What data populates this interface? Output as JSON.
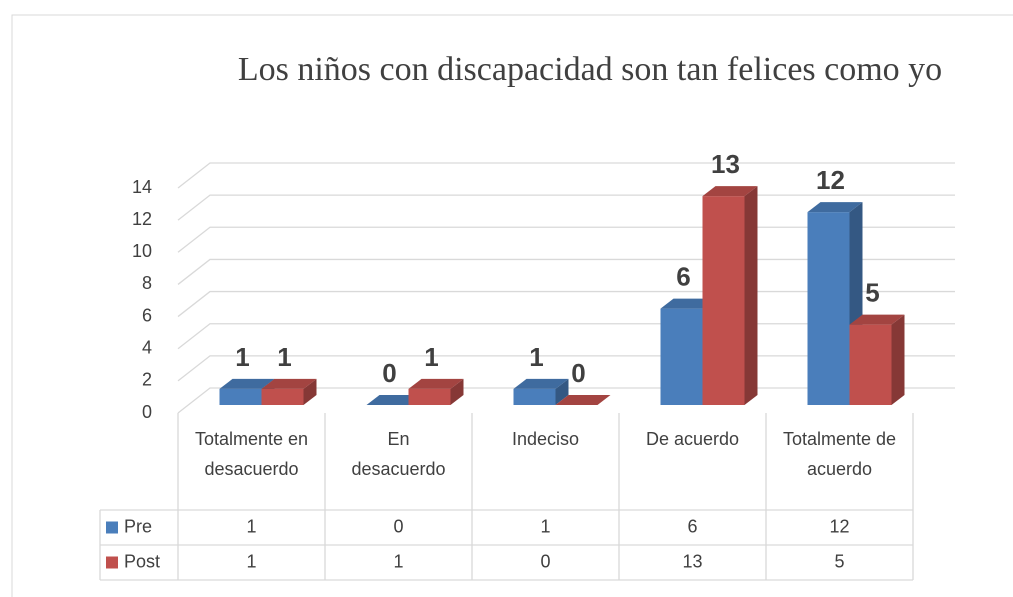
{
  "chart_data": {
    "type": "bar3d",
    "title": "Los niños con discapacidad son tan felices como yo",
    "categories": [
      "Totalmente en desacuerdo",
      "En desacuerdo",
      "Indeciso",
      "De acuerdo",
      "Totalmente de acuerdo"
    ],
    "series": [
      {
        "name": "Pre",
        "color": "#4a7ebb",
        "values": [
          1,
          0,
          1,
          6,
          12
        ]
      },
      {
        "name": "Post",
        "color": "#c0504d",
        "values": [
          1,
          1,
          0,
          13,
          5
        ]
      }
    ],
    "ylim": [
      0,
      14
    ],
    "yticks": [
      0,
      2,
      4,
      6,
      8,
      10,
      12,
      14
    ],
    "grid": true,
    "data_table": true
  }
}
